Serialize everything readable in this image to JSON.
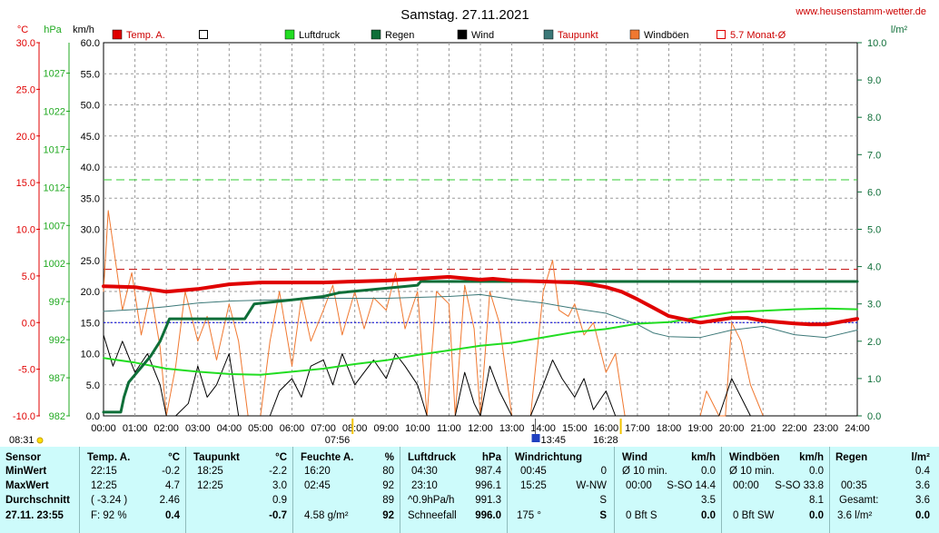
{
  "header": {
    "title": "Samstag. 27.11.2021",
    "site": "www.heusenstamm-wetter.de",
    "unit_c": "°C",
    "unit_hpa": "hPa",
    "unit_kmh": "km/h",
    "unit_lm2": "l/m²"
  },
  "legend": [
    {
      "label": "Temp. A.",
      "color": "#e00000",
      "style": "fill"
    },
    {
      "label": "",
      "color": "#000000",
      "style": "box"
    },
    {
      "label": "Luftdruck",
      "color": "#22dd22",
      "style": "fill"
    },
    {
      "label": "Regen",
      "color": "#0e6e38",
      "style": "fill"
    },
    {
      "label": "Wind",
      "color": "#000000",
      "style": "fill"
    },
    {
      "label": "Taupunkt",
      "color": "#3c7878",
      "style": "fill"
    },
    {
      "label": "Windböen",
      "color": "#f07830",
      "style": "fill"
    },
    {
      "label": "5.7 Monat-Ø",
      "color": "#e00000",
      "style": "box"
    }
  ],
  "chart_data": {
    "type": "line",
    "title": "Samstag. 27.11.2021",
    "x_ticks": [
      "00:00",
      "01:00",
      "02:00",
      "03:00",
      "04:00",
      "05:00",
      "06:00",
      "07:00",
      "08:00",
      "09:00",
      "10:00",
      "11:00",
      "12:00",
      "13:00",
      "14:00",
      "15:00",
      "16:00",
      "17:00",
      "18:00",
      "19:00",
      "20:00",
      "21:00",
      "22:00",
      "23:00",
      "24:00"
    ],
    "axes": {
      "temp_c": {
        "label": "°C",
        "range": [
          -10,
          30
        ],
        "ticks": [
          "30.0",
          "25.0",
          "20.0",
          "15.0",
          "10.0",
          "5.0",
          "0.0",
          "-5.0",
          "-10.0"
        ],
        "color": "#e00000"
      },
      "pressure_hpa": {
        "label": "hPa",
        "range": [
          982,
          1031
        ],
        "ticks": [
          "1027",
          "1022",
          "1017",
          "1012",
          "1007",
          "1002",
          "997",
          "992",
          "987",
          "982"
        ],
        "color": "#22aa22"
      },
      "wind_kmh": {
        "label": "km/h",
        "range": [
          0,
          60
        ],
        "ticks": [
          "60.0",
          "55.0",
          "50.0",
          "45.0",
          "40.0",
          "35.0",
          "30.0",
          "25.0",
          "20.0",
          "15.0",
          "10.0",
          "5.0",
          "0.0"
        ],
        "color": "#000000"
      },
      "rain_lm2": {
        "label": "l/m²",
        "range": [
          0,
          10
        ],
        "ticks": [
          "10.0",
          "9.0",
          "8.0",
          "7.0",
          "6.0",
          "5.0",
          "4.0",
          "3.0",
          "2.0",
          "1.0",
          "0.0"
        ],
        "color": "#0e6e38"
      }
    },
    "reference_lines": [
      {
        "name": "5.7 Monat-Ø",
        "axis": "temp_c",
        "value": 5.7,
        "color": "#c00000",
        "dash": true
      },
      {
        "axis": "pressure_hpa",
        "value": 1013,
        "color": "#33cc33",
        "dash": true
      },
      {
        "axis": "temp_c",
        "value": 0,
        "color": "#0000dd",
        "dash": "dot"
      }
    ],
    "series": [
      {
        "name": "Temp. A.",
        "axis": "temp_c",
        "color": "#e00000",
        "width": 4,
        "x": [
          0,
          1,
          2,
          3,
          4,
          5,
          6,
          7,
          8,
          9,
          10,
          11,
          12,
          12.4,
          13,
          14,
          15,
          15.5,
          16,
          16.5,
          17,
          17.5,
          18,
          19,
          20,
          20.5,
          21,
          22,
          22.5,
          23,
          24
        ],
        "y": [
          3.9,
          3.8,
          3.3,
          3.6,
          4.1,
          4.3,
          4.3,
          4.3,
          4.4,
          4.5,
          4.7,
          4.9,
          4.6,
          4.7,
          4.5,
          4.4,
          4.3,
          4.1,
          3.8,
          3.3,
          2.5,
          1.6,
          0.7,
          0.0,
          0.5,
          0.5,
          0.2,
          -0.1,
          -0.2,
          -0.2,
          0.4
        ]
      },
      {
        "name": "Taupunkt",
        "axis": "temp_c",
        "color": "#3c7878",
        "width": 1,
        "x": [
          0,
          1,
          2,
          3,
          4,
          5,
          6,
          7,
          8,
          9,
          10,
          11,
          12,
          13,
          14,
          15,
          16,
          17,
          17.5,
          18,
          19,
          20,
          21,
          22,
          23,
          24
        ],
        "y": [
          1.2,
          1.4,
          1.7,
          2.1,
          2.3,
          2.4,
          2.5,
          2.6,
          2.6,
          2.6,
          2.7,
          2.8,
          3.0,
          2.5,
          2.1,
          1.5,
          1.0,
          -0.2,
          -1.1,
          -1.5,
          -1.6,
          -0.8,
          -0.4,
          -1.3,
          -1.6,
          -0.8
        ]
      },
      {
        "name": "Luftdruck",
        "axis": "pressure_hpa",
        "color": "#22dd22",
        "width": 2,
        "x": [
          0,
          1,
          2,
          3,
          4,
          5,
          6,
          7,
          8,
          9,
          10,
          11,
          12,
          13,
          14,
          15,
          16,
          17,
          18,
          19,
          20,
          21,
          22,
          23,
          24
        ],
        "y": [
          989.6,
          989.0,
          988.2,
          987.8,
          987.5,
          987.4,
          987.8,
          988.2,
          988.8,
          989.3,
          990.0,
          990.6,
          991.2,
          991.6,
          992.3,
          993.0,
          993.4,
          994.1,
          994.3,
          995.0,
          995.6,
          995.8,
          996.0,
          996.1,
          996.0
        ]
      },
      {
        "name": "Regen",
        "axis": "rain_lm2",
        "color": "#0e6e38",
        "width": 3,
        "x": [
          0,
          0.55,
          0.65,
          0.8,
          1.5,
          1.8,
          2.0,
          2.1,
          4.5,
          4.8,
          4.8,
          7.0,
          7.5,
          10.0,
          10.1,
          24.0
        ],
        "y": [
          0.1,
          0.1,
          0.5,
          0.9,
          1.6,
          2.0,
          2.4,
          2.6,
          2.6,
          3.0,
          3.0,
          3.2,
          3.3,
          3.5,
          3.6,
          3.6
        ]
      },
      {
        "name": "Wind",
        "axis": "wind_kmh",
        "color": "#000000",
        "width": 1,
        "x": [
          0,
          0.3,
          0.6,
          1.0,
          1.4,
          1.8,
          2.0,
          2.3,
          2.7,
          3.0,
          3.3,
          3.6,
          4.0,
          4.3,
          4.6,
          5.0,
          5.3,
          5.6,
          6.0,
          6.3,
          6.6,
          7.0,
          7.3,
          7.6,
          8.0,
          8.3,
          8.6,
          9.0,
          9.3,
          9.6,
          10.0,
          10.3,
          10.6,
          11.0,
          11.2,
          11.5,
          11.8,
          12.0,
          12.3,
          12.6,
          13.0,
          13.3,
          13.6,
          14.0,
          14.3,
          14.6,
          15.0,
          15.3,
          15.6,
          16.0,
          16.3,
          16.6,
          17.0,
          18.0,
          19.0,
          19.6,
          20.0,
          20.3,
          20.6,
          21.0,
          24.0
        ],
        "y": [
          13.0,
          8.0,
          12.0,
          7.0,
          10.0,
          5.0,
          0.0,
          0.0,
          2.0,
          8.0,
          3.0,
          5.0,
          10.0,
          0.0,
          0.0,
          0.0,
          0.0,
          4.0,
          6.0,
          3.0,
          8.0,
          9.0,
          5.0,
          10.0,
          5.0,
          7.0,
          9.0,
          6.0,
          10.0,
          8.0,
          5.0,
          0.0,
          0.0,
          0.0,
          0.0,
          7.0,
          2.0,
          0.0,
          8.0,
          4.0,
          0.0,
          0.0,
          0.0,
          5.0,
          9.0,
          6.0,
          3.0,
          6.0,
          1.0,
          4.0,
          0.0,
          0.0,
          0.0,
          0.0,
          0.0,
          0.0,
          6.0,
          3.0,
          0.0,
          0.0,
          0.0
        ]
      },
      {
        "name": "Windböen",
        "axis": "wind_kmh",
        "color": "#f07830",
        "width": 1,
        "x": [
          0,
          0.15,
          0.35,
          0.6,
          0.9,
          1.2,
          1.5,
          1.8,
          2.0,
          2.3,
          2.6,
          3.0,
          3.3,
          3.6,
          4.0,
          4.3,
          4.6,
          5.0,
          5.3,
          5.6,
          6.0,
          6.3,
          6.6,
          7.0,
          7.3,
          7.6,
          8.0,
          8.3,
          8.6,
          9.0,
          9.3,
          9.6,
          10.0,
          10.3,
          10.6,
          11.0,
          11.2,
          11.5,
          11.8,
          12.0,
          12.3,
          12.6,
          13.0,
          13.3,
          13.6,
          14.0,
          14.3,
          14.5,
          14.8,
          15.0,
          15.3,
          15.6,
          16.0,
          16.3,
          16.6,
          17.0,
          18.0,
          19.0,
          19.2,
          19.6,
          19.8,
          20.0,
          20.3,
          20.6,
          21.0,
          24.0
        ],
        "y": [
          20.0,
          33.0,
          26.0,
          17.0,
          23.0,
          13.0,
          20.0,
          11.0,
          0.0,
          8.0,
          20.0,
          12.0,
          16.0,
          9.0,
          18.0,
          12.0,
          0.0,
          0.0,
          12.0,
          20.0,
          8.0,
          19.0,
          12.0,
          17.0,
          21.0,
          13.0,
          20.0,
          14.0,
          19.0,
          17.0,
          23.0,
          14.0,
          20.0,
          0.0,
          20.0,
          18.0,
          0.0,
          21.0,
          14.0,
          0.0,
          20.0,
          15.0,
          0.0,
          0.0,
          0.0,
          20.0,
          25.0,
          17.0,
          16.0,
          18.0,
          13.0,
          15.0,
          7.0,
          10.0,
          0.0,
          0.0,
          0.0,
          0.0,
          4.0,
          0.0,
          0.0,
          15.0,
          12.0,
          5.0,
          0.0,
          0.0
        ]
      }
    ],
    "markers": [
      {
        "label": "08:31",
        "x_hour": 8.52,
        "kind": "sunrise"
      },
      {
        "label": "07:56",
        "x_hour": 7.93,
        "kind": "tick"
      },
      {
        "label": "13:45",
        "x_hour": 13.75,
        "kind": "icon"
      },
      {
        "label": "16:28",
        "x_hour": 16.47,
        "kind": "tick"
      }
    ]
  },
  "table": {
    "footer_label": "27.11. 23:55",
    "sensor": {
      "hdr": "Sensor",
      "rows": [
        "MinWert",
        "MaxWert",
        "Durchschnitt"
      ]
    },
    "temp": {
      "hdr": "Temp. A.",
      "unit": "°C",
      "rows": [
        [
          "22:15",
          "-0.2"
        ],
        [
          "12:25",
          "4.7"
        ],
        [
          "( -3.24 )",
          "2.46"
        ]
      ],
      "foot_left": "F: 92 %",
      "foot_right": "0.4"
    },
    "dew": {
      "hdr": "Taupunkt",
      "unit": "°C",
      "rows": [
        [
          "18:25",
          "-2.2"
        ],
        [
          "12:25",
          "3.0"
        ],
        [
          "",
          "0.9"
        ]
      ],
      "foot_right": "-0.7"
    },
    "hum": {
      "hdr": "Feuchte A.",
      "unit": "%",
      "rows": [
        [
          "16:20",
          "80"
        ],
        [
          "02:45",
          "92"
        ],
        [
          "",
          "89"
        ]
      ],
      "foot_left": "4.58 g/m²",
      "foot_right": "92"
    },
    "pressure": {
      "hdr": "Luftdruck",
      "unit": "hPa",
      "rows": [
        [
          "04:30",
          "987.4"
        ],
        [
          "23:10",
          "996.1"
        ],
        [
          "^0.9hPa/h",
          "991.3"
        ]
      ],
      "foot_left": "Schneefall",
      "foot_right": "996.0"
    },
    "winddir": {
      "hdr": "Windrichtung",
      "rows": [
        [
          "00:45",
          "0"
        ],
        [
          "15:25",
          "W-NW"
        ],
        [
          "",
          "S"
        ]
      ],
      "foot_left": "175 °",
      "foot_right": "S"
    },
    "wind": {
      "hdr": "Wind",
      "unit": "km/h",
      "rows": [
        [
          "Ø 10 min.",
          "0.0"
        ],
        [
          "00:00",
          "S-SO 14.4"
        ],
        [
          "",
          "3.5"
        ]
      ],
      "foot_left": "0 Bft S",
      "foot_right": "0.0"
    },
    "gust": {
      "hdr": "Windböen",
      "unit": "km/h",
      "rows": [
        [
          "Ø 10 min.",
          "0.0"
        ],
        [
          "00:00",
          "S-SO 33.8"
        ],
        [
          "",
          "8.1"
        ]
      ],
      "foot_left": "0 Bft SW",
      "foot_right": "0.0"
    },
    "rain": {
      "hdr": "Regen",
      "unit": "l/m²",
      "rows": [
        [
          "",
          "0.4"
        ],
        [
          "00:35",
          "3.6"
        ],
        [
          "Gesamt:",
          "3.6"
        ]
      ],
      "foot_left": "3.6 l/m²",
      "foot_right": "0.0"
    }
  }
}
